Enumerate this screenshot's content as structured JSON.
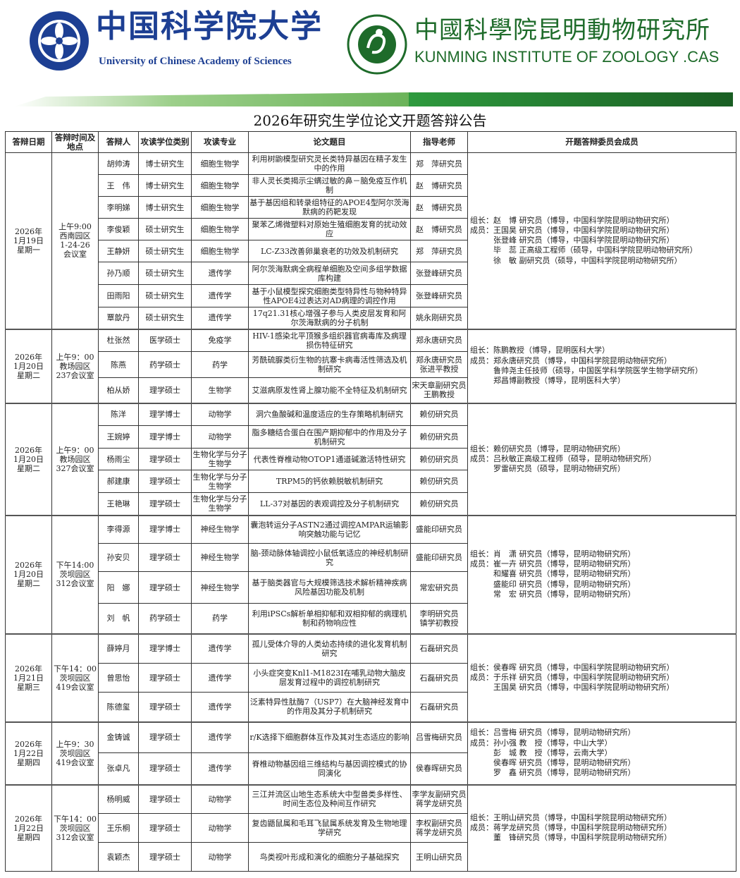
{
  "header": {
    "ucas_name_cn": "中国科学院大学",
    "ucas_name_en": "University of  Chinese Academy of Sciences",
    "kiz_name_cn": "中國科學院昆明動物研究所",
    "kiz_name_en": "KUNMING INSTITUTE OF ZOOLOGY .CAS",
    "ucas_color": "#1d3f93",
    "kiz_color": "#1e6b2a"
  },
  "title": "2026年研究生学位论文开题答辩公告",
  "columns": [
    "答辩日期",
    "答辩时间及地点",
    "答辩人",
    "攻读学位类别",
    "攻读专业",
    "论文题目",
    "指导老师",
    "开题答辩委员会成员"
  ],
  "groups": [
    {
      "date": "2026年\n1月19日\n星期一",
      "time_place": "上午9:00\n西南园区\n1-24-26\n会议室",
      "committee": "组长：赵　博 研究员（博导，中国科学院昆明动物研究所）\n成员：王国昊 研究员（博导，中国科学院昆明动物研究所）\n　　　张登峰 研究员（博导，中国科学院昆明动物研究所）\n　　　毕　蕊 正高级工程师（硕导，中国科学院昆明动物研究所）\n　　　徐　敏 副研究员（硕导，中国科学院昆明动物研究所）",
      "rows": [
        {
          "name": "胡帅涛",
          "degree": "博士研究生",
          "major": "细胞生物学",
          "topic": "利用树鼩模型研究灵长类特异基因在精子发生中的作用",
          "advisor": "郑　萍研究员"
        },
        {
          "name": "王　伟",
          "degree": "博士研究生",
          "major": "细胞生物学",
          "topic": "非人灵长类揭示尘螨过敏的鼻－脑免疫互作机制",
          "advisor": "赵　博研究员"
        },
        {
          "name": "李明娣",
          "degree": "博士研究生",
          "major": "细胞生物学",
          "topic": "基于基因组和转录组特征的APOE4型阿尔茨海默病的药靶发现",
          "advisor": "赵　博研究员"
        },
        {
          "name": "李俊颖",
          "degree": "硕士研究生",
          "major": "细胞生物学",
          "topic": "聚苯乙烯微塑料对原始生殖细胞发育的扰动效应",
          "advisor": "赵　博研究员"
        },
        {
          "name": "王静妍",
          "degree": "硕士研究生",
          "major": "细胞生物学",
          "topic": "LC-Z33改善卵巢衰老的功效及机制研究",
          "advisor": "郑　萍研究员"
        },
        {
          "name": "孙乃顺",
          "degree": "硕士研究生",
          "major": "遗传学",
          "topic": "阿尔茨海默病全病程单细胞及空间多组学数据库构建",
          "advisor": "张登峰研究员"
        },
        {
          "name": "田雨阳",
          "degree": "硕士研究生",
          "major": "遗传学",
          "topic": "基于小鼠模型探究细胞类型特异性与物种特异性APOE4过表达对AD病理的调控作用",
          "advisor": "张登峰研究员"
        },
        {
          "name": "覃歆丹",
          "degree": "硕士研究生",
          "major": "遗传学",
          "topic": "17q21.31核心增强子参与人类皮层发育和阿尔茨海默病的分子机制",
          "advisor": "姚永刚研究员"
        }
      ]
    },
    {
      "date": "2026年\n1月20日\n星期二",
      "time_place": "上午9：00\n教场园区\n237会议室",
      "committee": "组长：陈鹏教授（博导，昆明医科大学）\n成员：郑永唐研究员（博导，中国科学院昆明动物研究所）\n　　　鲁帅尧主任技师（硕导，中国医学科学院医学生物学研究所）\n　　　郑昌博副教授（博导，昆明医科大学）",
      "rows": [
        {
          "name": "杜张然",
          "degree": "医学硕士",
          "major": "免疫学",
          "topic": "HIV-1感染北平顶猴多组织器官病毒库及病理损伤特征研究",
          "advisor": "郑永唐研究员"
        },
        {
          "name": "陈燕",
          "degree": "药学硕士",
          "major": "药学",
          "topic": "芳酰硫脲类衍生物的抗寨卡病毒活性筛选及机制研究",
          "advisor": "郑永唐研究员\n张进平教授"
        },
        {
          "name": "柏从娇",
          "degree": "理学硕士",
          "major": "生物学",
          "topic": "艾滋病原发性肾上腺功能不全特征及机制研究",
          "advisor": "宋天章副研究员\n王鹏教授"
        }
      ]
    },
    {
      "date": "2026年\n1月20日\n星期二",
      "time_place": "上午9：00\n教场园区\n327会议室",
      "committee": "组长：赖仞研究员（博导，昆明动物研究所）\n成员：吕秋敏正高级工程师（硕导，昆明动物研究所）\n　　　罗雷研究员（硕导，昆明动物研究所）",
      "rows": [
        {
          "name": "陈洋",
          "degree": "理学博士",
          "major": "动物学",
          "topic": "洞穴鱼酸碱和温度适应的生存策略机制研究",
          "advisor": "赖仞研究员"
        },
        {
          "name": "王婉婷",
          "degree": "理学博士",
          "major": "动物学",
          "topic": "脂多糖结合蛋白在围产期抑郁中的作用及分子机制研究",
          "advisor": "赖仞研究员"
        },
        {
          "name": "杨雨尘",
          "degree": "理学硕士",
          "major": "生物化学与分子生物学",
          "topic": "代表性脊椎动物OTOP1通道碱激活特性研究",
          "advisor": "赖仞研究员"
        },
        {
          "name": "郝建康",
          "degree": "理学硕士",
          "major": "生物化学与分子生物学",
          "topic": "TRPM5的钙依赖脱敏机制研究",
          "advisor": "赖仞研究员"
        },
        {
          "name": "王艳琳",
          "degree": "理学硕士",
          "major": "生物化学与分子生物学",
          "topic": "LL-37对基因的表观调控及分子机制研究",
          "advisor": "赖仞研究员"
        }
      ]
    },
    {
      "date": "2026年\n1月20日\n星期二",
      "time_place": "下午14:00\n茨坝园区\n312会议室",
      "committee": "组长：肖　潇 研究员（博导，昆明动物研究所）\n成员：崔一卉 研究员（博导，昆明动物研究所）\n　　　和耀喜 研究员（博导，昆明动物研究所）\n　　　盛能印 研究员（博导，昆明动物研究所）\n　　　常　宏 研究员（博导，昆明动物研究所）",
      "rows": [
        {
          "name": "李得源",
          "degree": "理学博士",
          "major": "神经生物学",
          "topic": "囊泡转运分子ASTN2通过调控AMPAR运输影响突触功能与记忆",
          "advisor": "盛能印研究员"
        },
        {
          "name": "孙安贝",
          "degree": "理学硕士",
          "major": "神经生物学",
          "topic": "脑-颈动脉体轴调控小鼠低氧适应的神经机制研究",
          "advisor": "盛能印研究员"
        },
        {
          "name": "阳　娜",
          "degree": "理学硕士",
          "major": "神经生物学",
          "topic": "基于脑类器官与大规模筛选技术解析精神疾病风险基因功能及机制",
          "advisor": "常宏研究员"
        },
        {
          "name": "刘　帆",
          "degree": "药学硕士",
          "major": "药学",
          "topic": "利用iPSCs解析单相抑郁和双相抑郁的病理机制和药物响应性",
          "advisor": "李明研究员\n镇学初教授"
        }
      ]
    },
    {
      "date": "2026年\n1月21日\n星期三",
      "time_place": "下午14：00\n茨坝园区\n419会议室",
      "committee": "组长：侯春晖 研究员（博导，中国科学院昆明动物研究所）\n成员：于乐祥 研究员（博导，中国科学院昆明动物研究所）\n　　　王国昊 研究员（博导，中国科学院昆明动物研究所）",
      "rows": [
        {
          "name": "薛婷月",
          "degree": "理学博士",
          "major": "遗传学",
          "topic": "孤儿受体介导的人类幼态持续的进化发育机制研究",
          "advisor": "石磊研究员"
        },
        {
          "name": "曾思怡",
          "degree": "理学硕士",
          "major": "遗传学",
          "topic": "小头症突变Knl1-M1823I在哺乳动物大脑皮层发育过程中的调控机制研究",
          "advisor": "石磊研究员"
        },
        {
          "name": "陈德玺",
          "degree": "理学硕士",
          "major": "遗传学",
          "topic": "泛素特异性肽酶7（USP7）在大脑神经发育中的作用及其分子机制研究",
          "advisor": "石磊研究员"
        }
      ]
    },
    {
      "date": "2026年\n1月22日\n星期四",
      "time_place": "上午9：30\n茨坝园区\n419会议室",
      "committee": "组长：吕雪梅 研究员（博导，昆明动物研究所）\n成员：孙小强 教　授（博导，中山大学）\n　　　彭　城 教　授（博导，云南大学）\n　　　侯春晖 研究员（博导，昆明动物研究所）\n　　　罗　鑫 研究员（博导，昆明动物研究所）",
      "rows": [
        {
          "name": "金铸诚",
          "degree": "理学硕士",
          "major": "遗传学",
          "topic": "r/K选择下细胞群体互作及其对生态适应的影响",
          "advisor": "吕雪梅研究员"
        },
        {
          "name": "张卓凡",
          "degree": "理学硕士",
          "major": "遗传学",
          "topic": "脊椎动物基因组三维结构与基因调控模式的协同演化",
          "advisor": "侯春晖研究员"
        }
      ]
    },
    {
      "date": "2026年\n1月22日\n星期四",
      "time_place": "下午14：00\n茨坝园区\n312会议室",
      "committee": "组长：王明山研究员（博导，中国科学院昆明动物研究所）\n成员：蒋学龙研究员（博导，中国科学院昆明动物研究所）\n　　　董　锋研究员（博导，中国科学院昆明动物研究所）",
      "rows": [
        {
          "name": "杨明威",
          "degree": "理学硕士",
          "major": "动物学",
          "topic": "三江并流区山地生态系统大中型兽类多样性、时间生态位及种间互作研究",
          "advisor": "李学友副研究员\n蒋学龙研究员"
        },
        {
          "name": "王乐桐",
          "degree": "理学硕士",
          "major": "动物学",
          "topic": "复齿鼯鼠属和毛耳飞鼠属系统发育及生物地理学研究",
          "advisor": "李权副研究员\n蒋学龙研究员"
        },
        {
          "name": "袁颖杰",
          "degree": "理学硕士",
          "major": "动物学",
          "topic": "鸟类视叶形成和演化的细胞分子基础探究",
          "advisor": "王明山研究员"
        }
      ]
    }
  ]
}
